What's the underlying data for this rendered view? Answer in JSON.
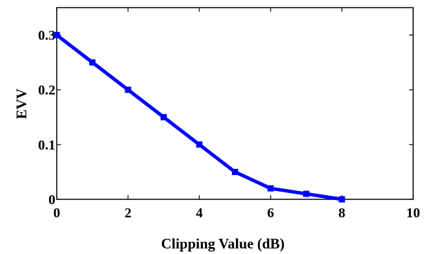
{
  "chart_data": {
    "type": "line",
    "title": "",
    "xlabel": "Clipping Value (dB)",
    "ylabel": "EVV",
    "xlim": [
      0,
      10
    ],
    "ylim": [
      0,
      0.35
    ],
    "xticks": [
      0,
      2,
      4,
      6,
      8,
      10
    ],
    "yticks": [
      0,
      0.1,
      0.2,
      0.3
    ],
    "xtick_labels": [
      "0",
      "2",
      "4",
      "6",
      "8",
      "10"
    ],
    "ytick_labels": [
      "0",
      "0.1",
      "0.2",
      "0.3"
    ],
    "grid": false,
    "legend": "none",
    "series": [
      {
        "color": "#0000ff",
        "marker": "square",
        "x": [
          0,
          1,
          2,
          3,
          4,
          5,
          6,
          7,
          8
        ],
        "y": [
          0.3,
          0.25,
          0.2,
          0.15,
          0.1,
          0.05,
          0.02,
          0.01,
          0.0
        ]
      }
    ]
  }
}
